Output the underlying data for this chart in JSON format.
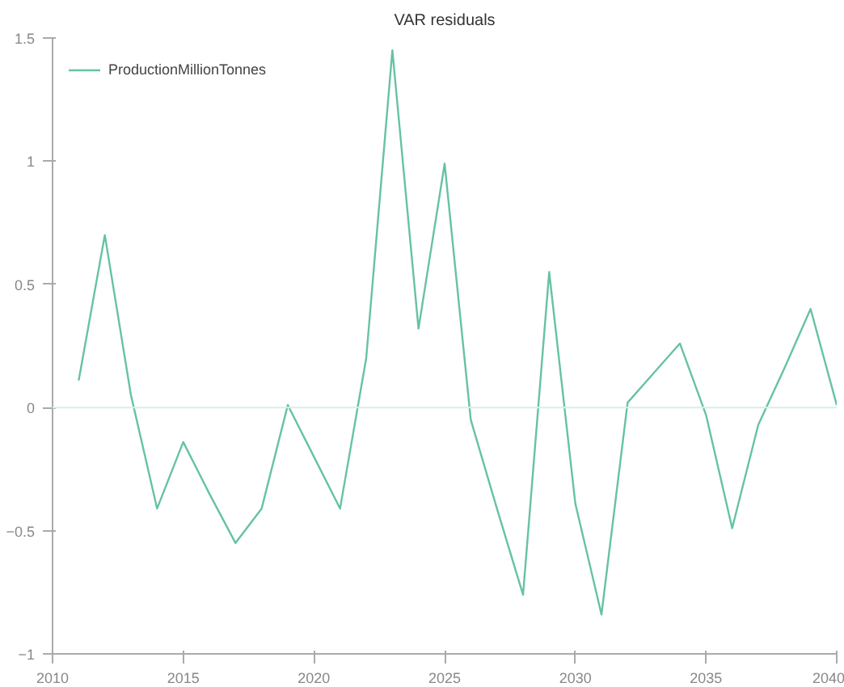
{
  "chart_data": {
    "type": "line",
    "title": "VAR residuals",
    "x": [
      2011,
      2012,
      2013,
      2014,
      2015,
      2016,
      2017,
      2018,
      2019,
      2020,
      2021,
      2022,
      2023,
      2024,
      2025,
      2026,
      2027,
      2028,
      2029,
      2030,
      2031,
      2032,
      2033,
      2034,
      2035,
      2036,
      2037,
      2038,
      2039,
      2040
    ],
    "series": [
      {
        "name": "ProductionMillionTonnes",
        "color": "#66c2a5",
        "values": [
          0.11,
          0.7,
          0.05,
          -0.41,
          -0.14,
          -0.35,
          -0.55,
          -0.41,
          0.01,
          -0.2,
          -0.41,
          0.2,
          1.45,
          0.32,
          0.99,
          -0.05,
          -0.41,
          -0.76,
          0.55,
          -0.39,
          -0.84,
          0.02,
          0.14,
          0.26,
          -0.03,
          -0.49,
          -0.07,
          0.16,
          0.4,
          0.01
        ]
      }
    ],
    "xlim": [
      2010,
      2040
    ],
    "xticks": [
      2010,
      2015,
      2020,
      2025,
      2030,
      2035,
      2040
    ],
    "ylim": [
      -1,
      1.5
    ],
    "yticks": [
      -1,
      -0.5,
      0,
      0.5,
      1,
      1.5
    ],
    "ref_lines": [
      {
        "axis": "y",
        "value": 0,
        "color": "#d8f0ea"
      }
    ],
    "grid": false,
    "legend": "top left",
    "marker": "none",
    "line_style": "solid"
  }
}
